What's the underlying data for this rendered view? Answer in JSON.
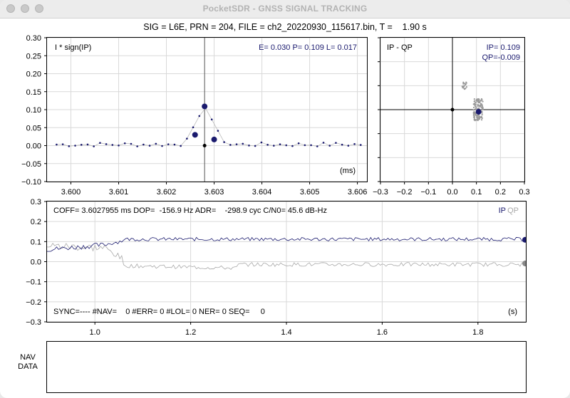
{
  "window": {
    "title": "PocketSDR - GNSS SIGNAL TRACKING"
  },
  "header": {
    "text": "SIG = L6E, PRN = 204, FILE = ch2_20220930_115617.bin, T =    1.90 s"
  },
  "colors": {
    "ip": "#1a1a6e",
    "qp": "#a8a8a8",
    "grid": "#d9d9d9"
  },
  "corr_plot": {
    "label": "I * sign(IP)",
    "elp_text": "E= 0.030 P= 0.109 L= 0.017",
    "x_unit": "(ms)",
    "xlim": [
      3.5995,
      3.6062
    ],
    "ylim": [
      -0.1,
      0.3
    ],
    "x_ticks": [
      "3.600",
      "3.601",
      "3.602",
      "3.603",
      "3.604",
      "3.605",
      "3.606"
    ],
    "y_ticks": [
      "0.30",
      "0.25",
      "0.20",
      "0.15",
      "0.10",
      "0.05",
      "0.00",
      "−0.05",
      "−0.10"
    ],
    "x_tick_values": [
      3.6,
      3.601,
      3.602,
      3.603,
      3.604,
      3.605,
      3.606
    ],
    "y_tick_values": [
      0.3,
      0.25,
      0.2,
      0.15,
      0.1,
      0.05,
      0.0,
      -0.05,
      -0.1
    ],
    "prompt_x": 3.6028,
    "e_point": [
      3.6026,
      0.03
    ],
    "p_point": [
      3.6028,
      0.109
    ],
    "l_point": [
      3.603,
      0.017
    ]
  },
  "iq_plot": {
    "label": "IP - QP",
    "ip_text": "IP= 0.109",
    "qp_text": "QP=-0.009",
    "lim": [
      -0.3,
      0.3
    ],
    "x_ticks": [
      "−0.3",
      "−0.2",
      "−0.1",
      "0.0",
      "0.1",
      "0.2",
      "0.3"
    ],
    "x_tick_values": [
      -0.3,
      -0.2,
      -0.1,
      0.0,
      0.1,
      0.2,
      0.3
    ],
    "current": [
      0.109,
      -0.009
    ]
  },
  "time_plot": {
    "info_text": "COFF= 3.6027955 ms DOP=  -156.9 Hz ADR=    -298.9 cyc C/N0= 45.6 dB-Hz",
    "sync_text": "SYNC=---- #NAV=    0 #ERR= 0 #LOL= 0 NER= 0 SEQ=     0",
    "legend_ip": "IP",
    "legend_qp": "QP",
    "x_unit": "(s)",
    "xlim": [
      0.9,
      1.9
    ],
    "ylim": [
      -0.3,
      0.3
    ],
    "x_ticks": [
      "1.0",
      "1.2",
      "1.4",
      "1.6",
      "1.8"
    ],
    "x_tick_values": [
      1.0,
      1.2,
      1.4,
      1.6,
      1.8
    ],
    "y_ticks": [
      "0.3",
      "0.2",
      "0.1",
      "0.0",
      "−0.1",
      "−0.2",
      "−0.3"
    ],
    "y_tick_values": [
      0.3,
      0.2,
      0.1,
      0.0,
      -0.1,
      -0.2,
      -0.3
    ],
    "ip_end": 0.109,
    "qp_end": -0.009
  },
  "nav_panel": {
    "label_line1": "NAV",
    "label_line2": "DATA"
  }
}
